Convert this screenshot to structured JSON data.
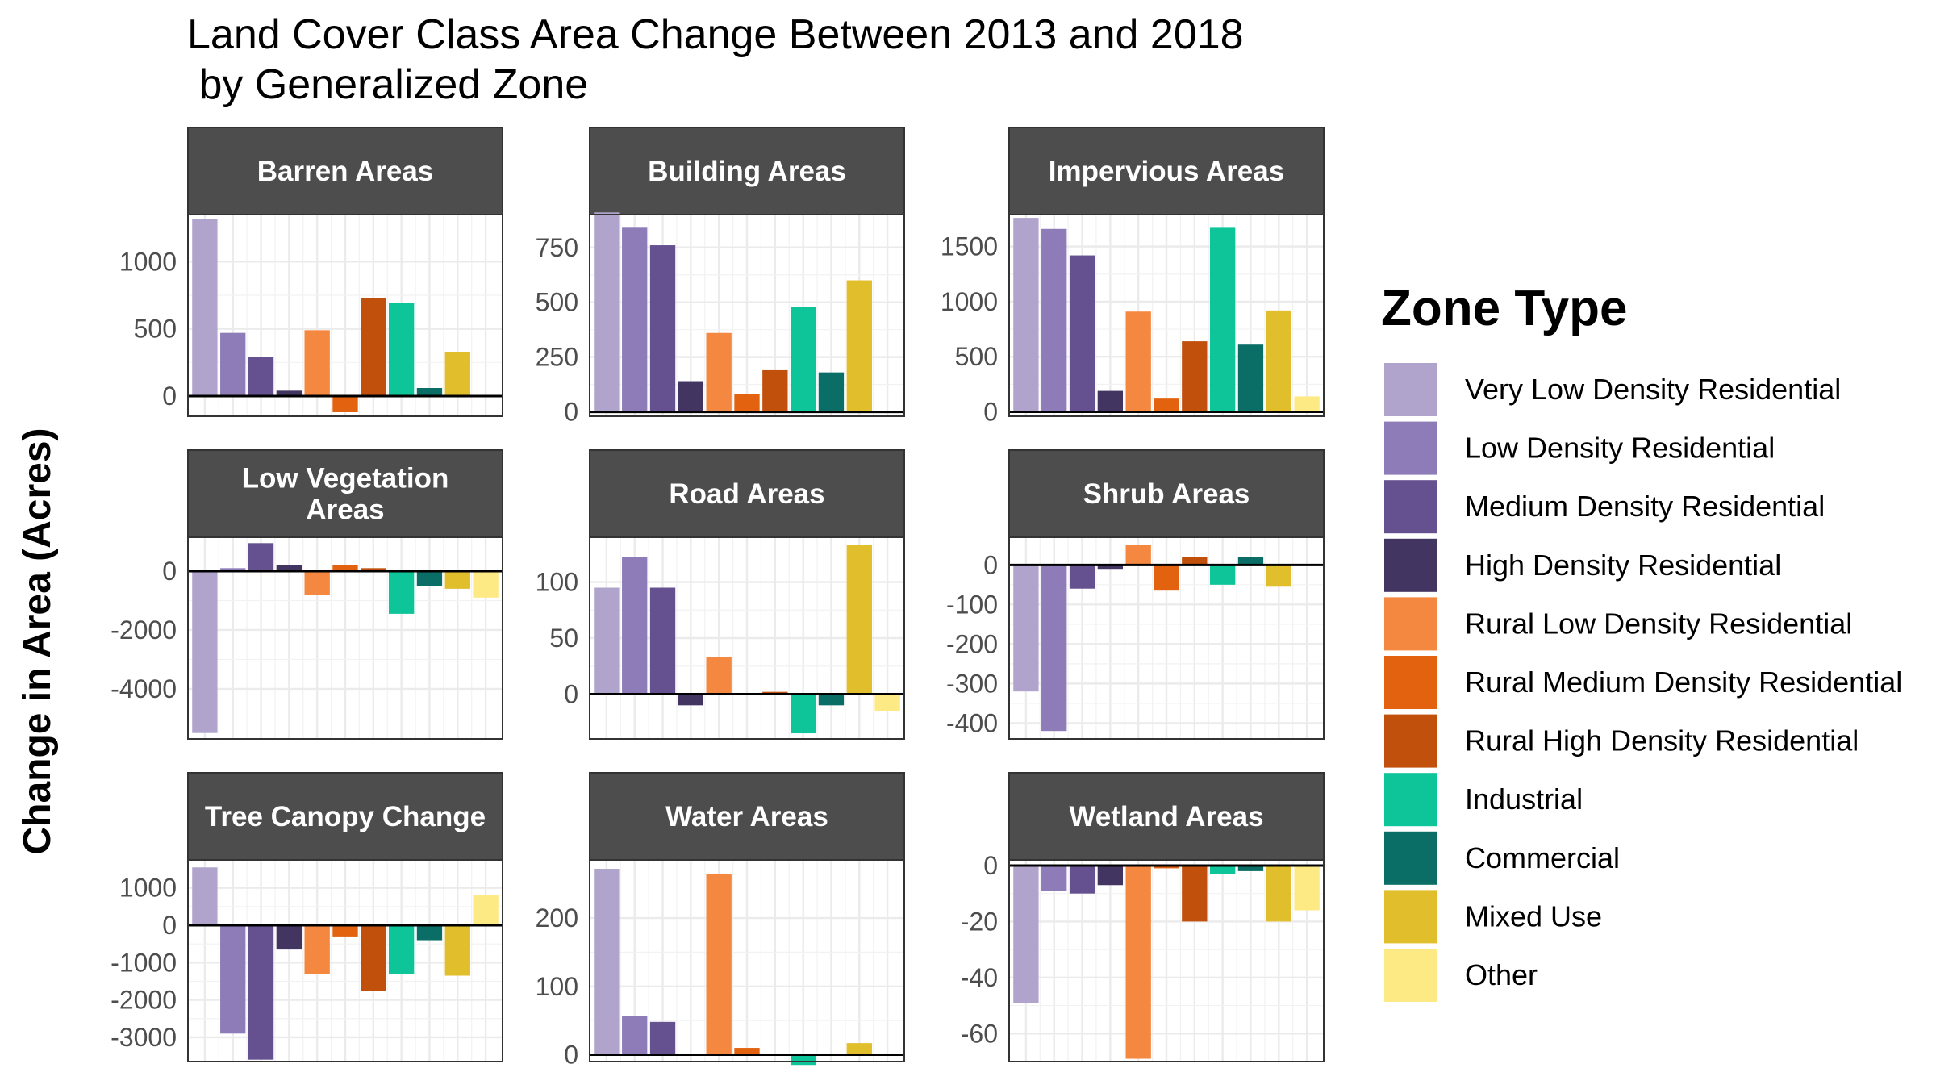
{
  "chart_data": {
    "type": "bar",
    "title_lines": [
      "Land Cover Class Area Change Between 2013 and 2018",
      " by Generalized Zone"
    ],
    "ylabel": "Change in Area (Acres)",
    "xlabel": "",
    "grid": true,
    "legend": {
      "title": "Zone Type",
      "placement": "right",
      "entries": [
        {
          "name": "Very Low Density Residential",
          "color": "#b1a4cc"
        },
        {
          "name": "Low Density Residential",
          "color": "#8e7cb9"
        },
        {
          "name": "Medium Density Residential",
          "color": "#65518f"
        },
        {
          "name": "High Density Residential",
          "color": "#433562"
        },
        {
          "name": "Rural Low Density Residential",
          "color": "#f58840"
        },
        {
          "name": "Rural Medium Density Residential",
          "color": "#e2620f"
        },
        {
          "name": "Rural High Density Residential",
          "color": "#c0500c"
        },
        {
          "name": "Industrial",
          "color": "#0ec499"
        },
        {
          "name": "Commercial",
          "color": "#0a6e66"
        },
        {
          "name": "Mixed Use",
          "color": "#e1be2c"
        },
        {
          "name": "Other",
          "color": "#fdea85"
        }
      ]
    },
    "panels": [
      {
        "title_lines": [
          "Barren Areas"
        ],
        "ylim": [
          -150,
          1350
        ],
        "ticks": [
          0,
          500,
          1000
        ],
        "tick_labels": [
          "0",
          "500",
          "1000"
        ],
        "values": [
          1320,
          470,
          290,
          40,
          490,
          -120,
          730,
          690,
          60,
          330,
          null
        ]
      },
      {
        "title_lines": [
          "Building Areas"
        ],
        "ylim": [
          -20,
          900
        ],
        "ticks": [
          0,
          250,
          500,
          750
        ],
        "tick_labels": [
          "0",
          "250",
          "500",
          "750"
        ],
        "values": [
          910,
          840,
          760,
          140,
          360,
          80,
          190,
          480,
          180,
          600,
          5
        ]
      },
      {
        "title_lines": [
          "Impervious Areas"
        ],
        "ylim": [
          -40,
          1790
        ],
        "ticks": [
          0,
          500,
          1000,
          1500
        ],
        "tick_labels": [
          "0",
          "500",
          "1000",
          "1500"
        ],
        "values": [
          1760,
          1660,
          1420,
          190,
          910,
          120,
          640,
          1670,
          610,
          920,
          140
        ]
      },
      {
        "title_lines": [
          "Low Vegetation",
          "Areas"
        ],
        "ylim": [
          -5700,
          1150
        ],
        "ticks": [
          0,
          -2000,
          -4000
        ],
        "tick_labels": [
          "0",
          "-2000",
          "-4000"
        ],
        "values": [
          -5500,
          100,
          950,
          200,
          -800,
          200,
          100,
          -1450,
          -500,
          -600,
          -900
        ]
      },
      {
        "title_lines": [
          "Road Areas"
        ],
        "ylim": [
          -40,
          140
        ],
        "ticks": [
          0,
          50,
          100
        ],
        "tick_labels": [
          "0",
          "50",
          "100"
        ],
        "values": [
          95,
          122,
          95,
          -10,
          33,
          0,
          2,
          -35,
          -10,
          133,
          -15
        ]
      },
      {
        "title_lines": [
          "Shrub Areas"
        ],
        "ylim": [
          -440,
          70
        ],
        "ticks": [
          0,
          -100,
          -200,
          -300,
          -400
        ],
        "tick_labels": [
          "0",
          "-100",
          "-200",
          "-300",
          "-400"
        ],
        "values": [
          -320,
          -420,
          -60,
          -10,
          50,
          -65,
          20,
          -50,
          20,
          -55,
          null
        ]
      },
      {
        "title_lines": [
          "Tree Canopy Change"
        ],
        "ylim": [
          -3650,
          1750
        ],
        "ticks": [
          0,
          -1000,
          -2000,
          -3000,
          1000
        ],
        "tick_labels": [
          "0",
          "-1000",
          "-2000",
          "-3000",
          "1000"
        ],
        "values": [
          1550,
          -2900,
          -3600,
          -650,
          -1300,
          -300,
          -1750,
          -1300,
          -400,
          -1350,
          800
        ]
      },
      {
        "title_lines": [
          "Water Areas"
        ],
        "ylim": [
          -10,
          285
        ],
        "ticks": [
          0,
          100,
          200
        ],
        "tick_labels": [
          "0",
          "100",
          "200"
        ],
        "values": [
          272,
          57,
          48,
          null,
          265,
          10,
          null,
          -15,
          null,
          17,
          null
        ]
      },
      {
        "title_lines": [
          "Wetland Areas"
        ],
        "ylim": [
          -70,
          2
        ],
        "ticks": [
          0,
          -20,
          -40,
          -60
        ],
        "tick_labels": [
          "0",
          "-20",
          "-40",
          "-60"
        ],
        "values": [
          -49,
          -9,
          -10,
          -7,
          -69,
          -1,
          -20,
          -3,
          -2,
          -20,
          -16
        ]
      }
    ]
  }
}
